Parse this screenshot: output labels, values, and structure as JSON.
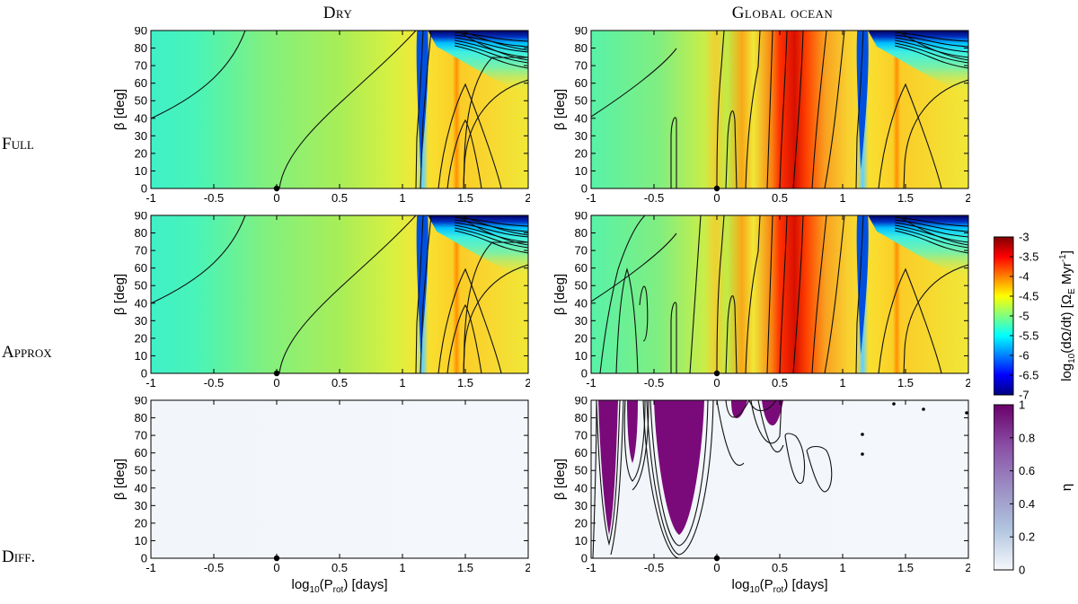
{
  "figure": {
    "column_titles": [
      "Dry",
      "Global ocean"
    ],
    "row_labels": [
      "Full",
      "Approx",
      "Diff."
    ]
  },
  "colorbars": [
    {
      "id": "rate",
      "title": "log10(dΩ/dt) [ΩE Myr-1]",
      "title_parts": {
        "main": "log",
        "sub1": "10",
        "mid": "(dΩ/dt) [Ω",
        "sub2": "E",
        "end": " Myr",
        "sup": "-1",
        "close": "]"
      },
      "ticks": [
        "-3",
        "-3.5",
        "-4",
        "-4.5",
        "-5",
        "-5.5",
        "-6",
        "-6.5",
        "-7"
      ],
      "range": [
        -7,
        -3
      ],
      "colors": [
        "#000080",
        "#0000ff",
        "#0080ff",
        "#00ffff",
        "#80ff80",
        "#ffff00",
        "#ff8000",
        "#ff0000",
        "#800000"
      ]
    },
    {
      "id": "eta",
      "title": "η",
      "ticks": [
        "1",
        "0.8",
        "0.6",
        "0.4",
        "0.2",
        "0"
      ],
      "range": [
        0,
        1
      ],
      "colors": [
        "#f5f8fb",
        "#b0c4de",
        "#9b8ec4",
        "#8a4fa5",
        "#6a006a"
      ]
    }
  ],
  "chart_data": [
    {
      "panel": "full-dry",
      "type": "heatmap",
      "xlabel": "",
      "ylabel": "β [deg]",
      "xlim": [
        -1,
        2
      ],
      "ylim": [
        0,
        90
      ],
      "xticks": [
        "-1",
        "-0.5",
        "0",
        "0.5",
        "1",
        "1.5",
        "2"
      ],
      "yticks": [
        "0",
        "10",
        "20",
        "30",
        "40",
        "50",
        "60",
        "70",
        "80",
        "90"
      ],
      "marker": {
        "x": 0,
        "y": 0
      }
    },
    {
      "panel": "full-ocean",
      "type": "heatmap",
      "xlabel": "",
      "ylabel": "β [deg]",
      "xlim": [
        -1,
        2
      ],
      "ylim": [
        0,
        90
      ],
      "xticks": [
        "-1",
        "-0.5",
        "0",
        "0.5",
        "1",
        "1.5",
        "2"
      ],
      "yticks": [
        "0",
        "10",
        "20",
        "30",
        "40",
        "50",
        "60",
        "70",
        "80",
        "90"
      ],
      "marker": {
        "x": 0,
        "y": 0
      }
    },
    {
      "panel": "approx-dry",
      "type": "heatmap",
      "xlabel": "",
      "ylabel": "β [deg]",
      "xlim": [
        -1,
        2
      ],
      "ylim": [
        0,
        90
      ],
      "xticks": [
        "-1",
        "-0.5",
        "0",
        "0.5",
        "1",
        "1.5",
        "2"
      ],
      "yticks": [
        "0",
        "10",
        "20",
        "30",
        "40",
        "50",
        "60",
        "70",
        "80",
        "90"
      ],
      "marker": {
        "x": 0,
        "y": 0
      }
    },
    {
      "panel": "approx-ocean",
      "type": "heatmap",
      "xlabel": "",
      "ylabel": "β [deg]",
      "xlim": [
        -1,
        2
      ],
      "ylim": [
        0,
        90
      ],
      "xticks": [
        "-1",
        "-0.5",
        "0",
        "0.5",
        "1",
        "1.5",
        "2"
      ],
      "yticks": [
        "0",
        "10",
        "20",
        "30",
        "40",
        "50",
        "60",
        "70",
        "80",
        "90"
      ],
      "marker": {
        "x": 0,
        "y": 0
      }
    },
    {
      "panel": "diff-dry",
      "type": "heatmap",
      "xlabel": "log10(Prot) [days]",
      "xlabel_parts": {
        "main": "log",
        "sub1": "10",
        "mid": "(P",
        "sub2": "rot",
        "end": ") [days]"
      },
      "ylabel": "β [deg]",
      "xlim": [
        -1,
        2
      ],
      "ylim": [
        0,
        90
      ],
      "xticks": [
        "-1",
        "-0.5",
        "0",
        "0.5",
        "1",
        "1.5",
        "2"
      ],
      "yticks": [
        "0",
        "10",
        "20",
        "30",
        "40",
        "50",
        "60",
        "70",
        "80",
        "90"
      ],
      "marker": {
        "x": 0,
        "y": 0
      }
    },
    {
      "panel": "diff-ocean",
      "type": "heatmap",
      "xlabel": "log10(Prot) [days]",
      "xlabel_parts": {
        "main": "log",
        "sub1": "10",
        "mid": "(P",
        "sub2": "rot",
        "end": ") [days]"
      },
      "ylabel": "β [deg]",
      "xlim": [
        -1,
        2
      ],
      "ylim": [
        0,
        90
      ],
      "xticks": [
        "-1",
        "-0.5",
        "0",
        "0.5",
        "1",
        "1.5",
        "2"
      ],
      "yticks": [
        "0",
        "10",
        "20",
        "30",
        "40",
        "50",
        "60",
        "70",
        "80",
        "90"
      ],
      "marker": {
        "x": 0,
        "y": 0
      }
    }
  ]
}
